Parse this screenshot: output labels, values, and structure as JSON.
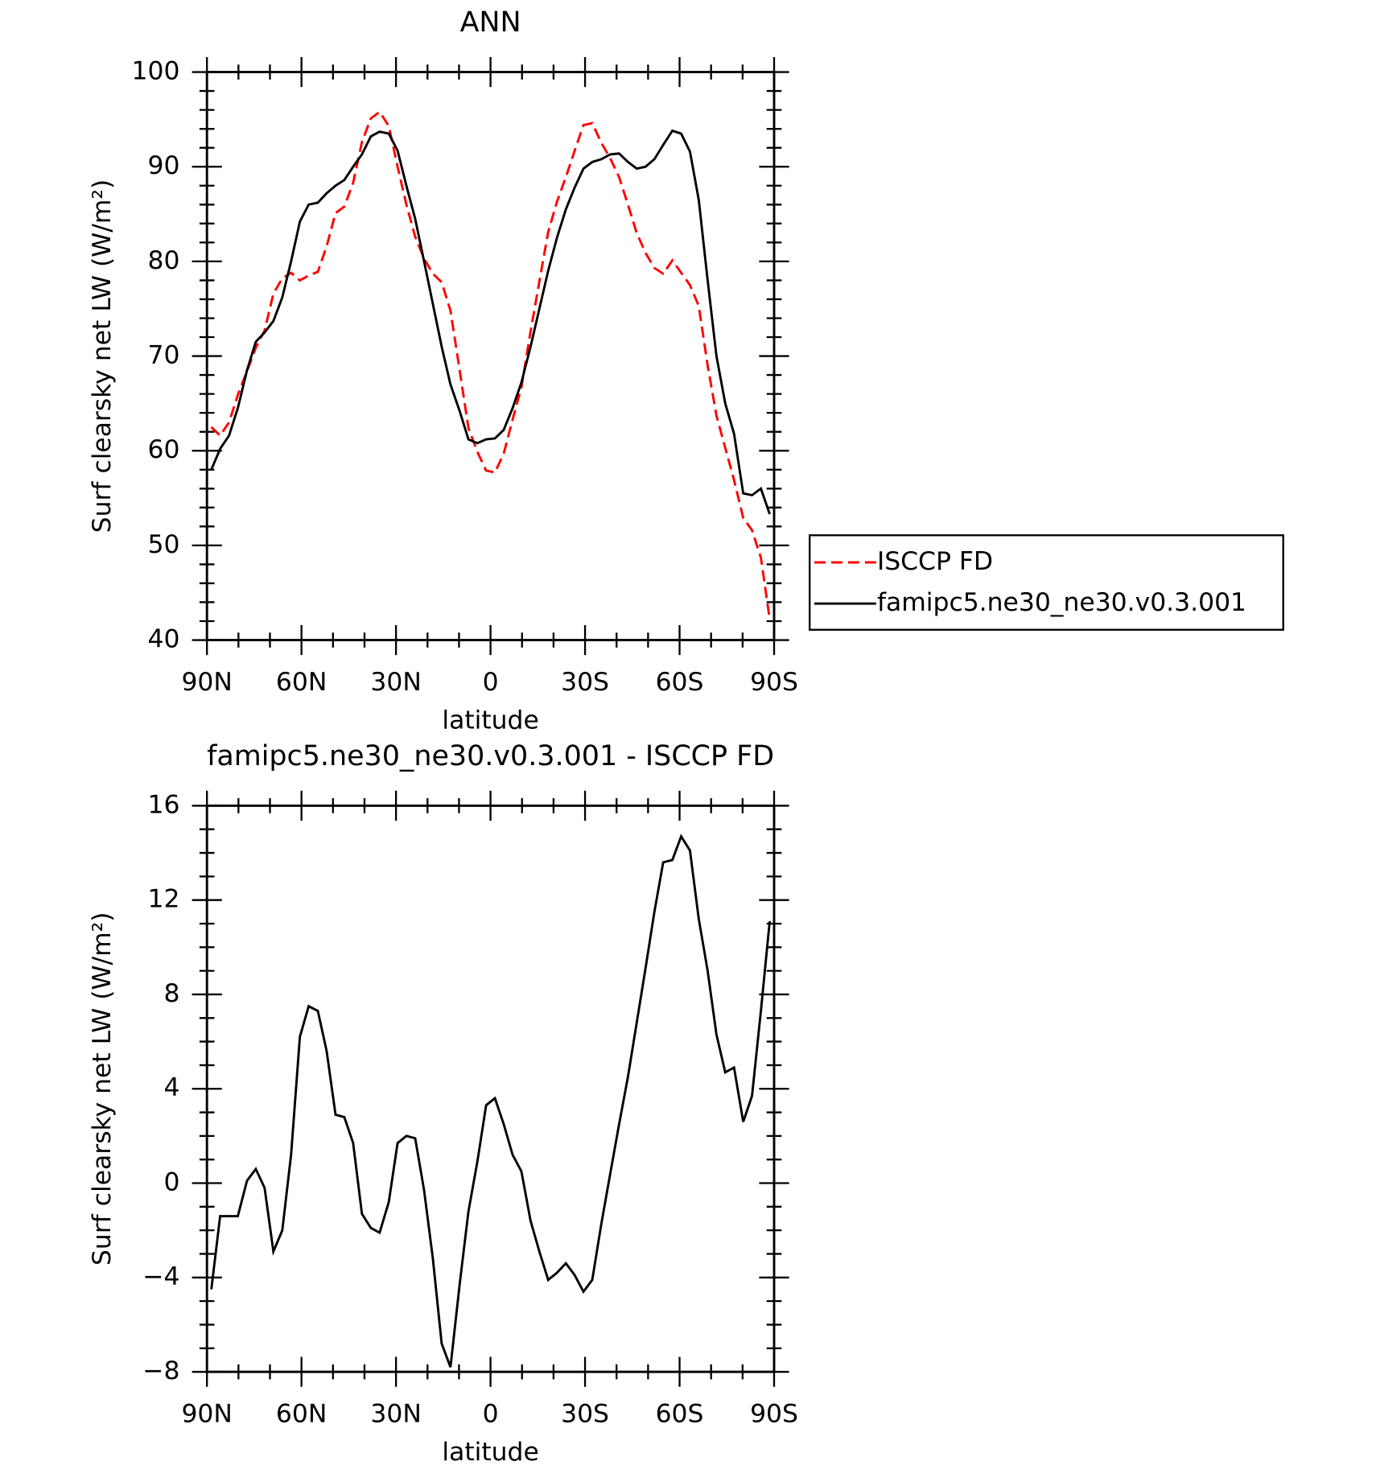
{
  "chart_data": [
    {
      "type": "line",
      "title": "ANN",
      "xlabel": "latitude",
      "ylabel": "Surf clearsky net LW (W/m²)",
      "x": [
        88.6,
        85.8,
        83.0,
        80.2,
        77.3,
        74.5,
        71.7,
        68.9,
        66.1,
        63.3,
        60.5,
        57.7,
        54.8,
        52.0,
        49.2,
        46.4,
        43.6,
        40.8,
        38.0,
        35.2,
        32.3,
        29.5,
        26.7,
        23.9,
        21.1,
        18.3,
        15.5,
        12.7,
        9.8,
        7.0,
        4.2,
        1.4,
        -1.4,
        -4.2,
        -7.0,
        -9.8,
        -12.7,
        -15.5,
        -18.3,
        -21.1,
        -23.9,
        -26.7,
        -29.5,
        -32.3,
        -35.2,
        -38.0,
        -40.8,
        -43.6,
        -46.4,
        -49.2,
        -52.0,
        -54.8,
        -57.7,
        -60.5,
        -63.3,
        -66.1,
        -68.9,
        -71.7,
        -74.5,
        -77.3,
        -80.2,
        -83.0,
        -85.8,
        -88.6
      ],
      "series": [
        {
          "name": "ISCCP FD",
          "color": "#ff0000",
          "dash": true,
          "values": [
            62.5,
            61.6,
            63,
            65.9,
            68.4,
            70.9,
            72.7,
            76.6,
            78.2,
            78.8,
            78,
            78.5,
            78.9,
            81.6,
            85.1,
            85.8,
            88.3,
            92.6,
            95.1,
            95.8,
            94.3,
            90,
            86,
            82.6,
            80.3,
            78.7,
            77.8,
            74.8,
            68.5,
            62.4,
            59.9,
            57.9,
            57.7,
            59.7,
            63.3,
            66.7,
            72.6,
            77.9,
            83.1,
            86.3,
            88.9,
            91.7,
            94.4,
            94.6,
            92.5,
            90.9,
            88.9,
            86,
            83,
            80.9,
            79.3,
            78.7,
            80.1,
            78.8,
            77.5,
            75.3,
            69,
            63.7,
            60.3,
            56.9,
            52.9,
            51.6,
            48.7,
            42.2
          ]
        },
        {
          "name": "famipc5.ne30_ne30.v0.3.001",
          "color": "#000000",
          "dash": false,
          "values": [
            58,
            60.2,
            61.6,
            64.5,
            68.5,
            71.5,
            72.5,
            73.7,
            76.2,
            80,
            84.2,
            86,
            86.2,
            87.2,
            88,
            88.6,
            90,
            91.3,
            93.2,
            93.7,
            93.5,
            91.7,
            88,
            84.5,
            80,
            75.5,
            71,
            67,
            64.2,
            61.2,
            60.8,
            61.2,
            61.3,
            62.2,
            64.5,
            67.2,
            71,
            75,
            79,
            82.5,
            85.5,
            87.8,
            89.8,
            90.5,
            90.8,
            91.3,
            91.4,
            90.5,
            89.8,
            90,
            90.8,
            92.3,
            93.8,
            93.5,
            91.6,
            86.5,
            78,
            70,
            65,
            61.8,
            55.5,
            55.3,
            56,
            53.3
          ]
        }
      ],
      "xlim": [
        90,
        -90
      ],
      "xticks": [
        {
          "value": 90,
          "label": "90N"
        },
        {
          "value": 60,
          "label": "60N"
        },
        {
          "value": 30,
          "label": "30N"
        },
        0,
        {
          "value": -30,
          "label": "30S"
        },
        {
          "value": -60,
          "label": "60S"
        },
        {
          "value": -90,
          "label": "90S"
        }
      ],
      "xminorticks": [
        80,
        70,
        50,
        40,
        20,
        10,
        -10,
        -20,
        -40,
        -50,
        -70,
        -80
      ],
      "ylim": [
        40,
        100
      ],
      "yticks": [
        40,
        50,
        60,
        70,
        80,
        90,
        100
      ],
      "yminorticks": [
        42,
        44,
        46,
        48,
        52,
        54,
        56,
        58,
        62,
        64,
        66,
        68,
        72,
        74,
        76,
        78,
        82,
        84,
        86,
        88,
        92,
        94,
        96,
        98
      ],
      "legend": "right"
    },
    {
      "type": "line",
      "title": "famipc5.ne30_ne30.v0.3.001 - ISCCP FD",
      "xlabel": "latitude",
      "ylabel": "Surf clearsky net LW (W/m²)",
      "x": [
        88.6,
        85.8,
        83.0,
        80.2,
        77.3,
        74.5,
        71.7,
        68.9,
        66.1,
        63.3,
        60.5,
        57.7,
        54.8,
        52.0,
        49.2,
        46.4,
        43.6,
        40.8,
        38.0,
        35.2,
        32.3,
        29.5,
        26.7,
        23.9,
        21.1,
        18.3,
        15.5,
        12.7,
        9.8,
        7.0,
        4.2,
        1.4,
        -1.4,
        -4.2,
        -7.0,
        -9.8,
        -12.7,
        -15.5,
        -18.3,
        -21.1,
        -23.9,
        -26.7,
        -29.5,
        -32.3,
        -35.2,
        -38.0,
        -40.8,
        -43.6,
        -46.4,
        -49.2,
        -52.0,
        -54.8,
        -57.7,
        -60.5,
        -63.3,
        -66.1,
        -68.9,
        -71.7,
        -74.5,
        -77.3,
        -80.2,
        -83.0,
        -85.8,
        -88.6
      ],
      "color": "#000000",
      "values": [
        -4.5,
        -1.4,
        -1.4,
        -1.4,
        0.1,
        0.6,
        -0.2,
        -2.9,
        -2,
        1.2,
        6.2,
        7.5,
        7.3,
        5.6,
        2.9,
        2.8,
        1.7,
        -1.3,
        -1.9,
        -2.1,
        -0.8,
        1.7,
        2,
        1.9,
        -0.3,
        -3.2,
        -6.8,
        -7.8,
        -4.3,
        -1.2,
        0.9,
        3.3,
        3.6,
        2.5,
        1.2,
        0.5,
        -1.6,
        -2.9,
        -4.1,
        -3.8,
        -3.4,
        -3.9,
        -4.6,
        -4.1,
        -1.7,
        0.4,
        2.5,
        4.5,
        6.8,
        9.1,
        11.5,
        13.6,
        13.7,
        14.7,
        14.1,
        11.2,
        9,
        6.3,
        4.7,
        4.9,
        2.6,
        3.7,
        7.3,
        11.1
      ],
      "xlim": [
        90,
        -90
      ],
      "xticks": [
        {
          "value": 90,
          "label": "90N"
        },
        {
          "value": 60,
          "label": "60N"
        },
        {
          "value": 30,
          "label": "30N"
        },
        0,
        {
          "value": -30,
          "label": "30S"
        },
        {
          "value": -60,
          "label": "60S"
        },
        {
          "value": -90,
          "label": "90S"
        }
      ],
      "xminorticks": [
        80,
        70,
        50,
        40,
        20,
        10,
        -10,
        -20,
        -40,
        -50,
        -70,
        -80
      ],
      "ylim": [
        -8,
        16
      ],
      "yticks": [
        {
          "value": -8,
          "label": "−8"
        },
        {
          "value": -4,
          "label": "−4"
        },
        0,
        4,
        8,
        12,
        16
      ],
      "yminorticks": [
        -7,
        -6,
        -5,
        -3,
        -2,
        -1,
        1,
        2,
        3,
        5,
        6,
        7,
        9,
        10,
        11,
        13,
        14,
        15
      ]
    }
  ]
}
